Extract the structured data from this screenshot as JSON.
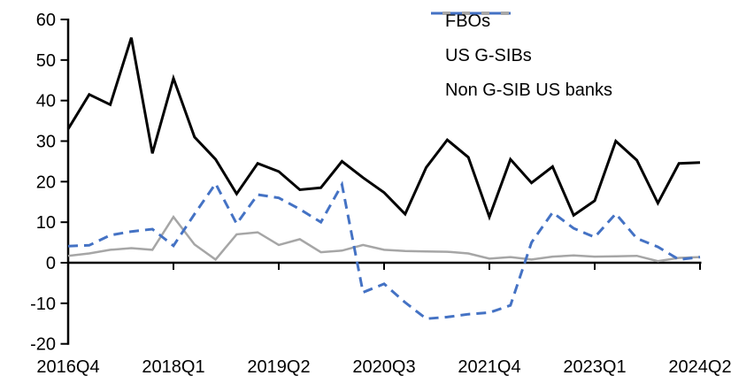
{
  "chart_data": {
    "type": "line",
    "title": "",
    "xlabel": "",
    "ylabel": "",
    "ylim": [
      -20,
      60
    ],
    "ytick_step": 10,
    "y_tick_labels": [
      "60",
      "50",
      "40",
      "30",
      "20",
      "10",
      "0",
      "-10",
      "-20"
    ],
    "y_tick_values": [
      60,
      50,
      40,
      30,
      20,
      10,
      0,
      -10,
      -20
    ],
    "grid": false,
    "legend_position": "top-right",
    "categories": [
      "2016Q4",
      "2017Q1",
      "2017Q2",
      "2017Q3",
      "2017Q4",
      "2018Q1",
      "2018Q2",
      "2018Q3",
      "2018Q4",
      "2019Q1",
      "2019Q2",
      "2019Q3",
      "2019Q4",
      "2020Q1",
      "2020Q2",
      "2020Q3",
      "2020Q4",
      "2021Q1",
      "2021Q2",
      "2021Q3",
      "2021Q4",
      "2022Q1",
      "2022Q2",
      "2022Q3",
      "2022Q4",
      "2023Q1",
      "2023Q2",
      "2023Q3",
      "2023Q4",
      "2024Q1",
      "2024Q2"
    ],
    "x_tick_labels": [
      "2016Q4",
      "2018Q1",
      "2019Q2",
      "2020Q3",
      "2021Q4",
      "2023Q1",
      "2024Q2"
    ],
    "x_tick_indices": [
      0,
      5,
      10,
      15,
      20,
      25,
      30
    ],
    "series": [
      {
        "name": "FBOs",
        "color": "#000000",
        "style": "solid",
        "values": [
          33,
          41.5,
          39,
          55.5,
          27,
          45.5,
          31,
          25.5,
          17,
          24.5,
          22.5,
          18,
          18.5,
          25,
          21,
          17.3,
          12,
          23.5,
          30.3,
          26,
          11.3,
          25.5,
          19.7,
          23.7,
          11.7,
          15.3,
          30,
          25.3,
          14.7,
          24.5,
          24.7
        ]
      },
      {
        "name": "US G-SIBs",
        "color": "#a6a6a6",
        "style": "solid",
        "values": [
          1.7,
          2.3,
          3.2,
          3.6,
          3.2,
          11.3,
          4.5,
          0.8,
          7,
          7.5,
          4.4,
          5.8,
          2.6,
          3,
          4.4,
          3.2,
          2.9,
          2.8,
          2.7,
          2.3,
          1,
          1.4,
          0.8,
          1.5,
          1.8,
          1.5,
          1.6,
          1.7,
          0.4,
          1.2,
          1.4
        ]
      },
      {
        "name": "Non G-SIB US banks",
        "color": "#4472c4",
        "style": "dashed",
        "values": [
          4.1,
          4.3,
          6.8,
          7.7,
          8.3,
          4.2,
          12,
          19.5,
          9.6,
          16.8,
          16,
          13.2,
          10,
          19.3,
          -7.3,
          -5.2,
          -9.8,
          -13.8,
          -13.4,
          -12.7,
          -12.3,
          -10.5,
          5,
          12.4,
          8.5,
          6.3,
          12.1,
          6,
          3.9,
          0.8,
          1.4
        ]
      }
    ]
  }
}
